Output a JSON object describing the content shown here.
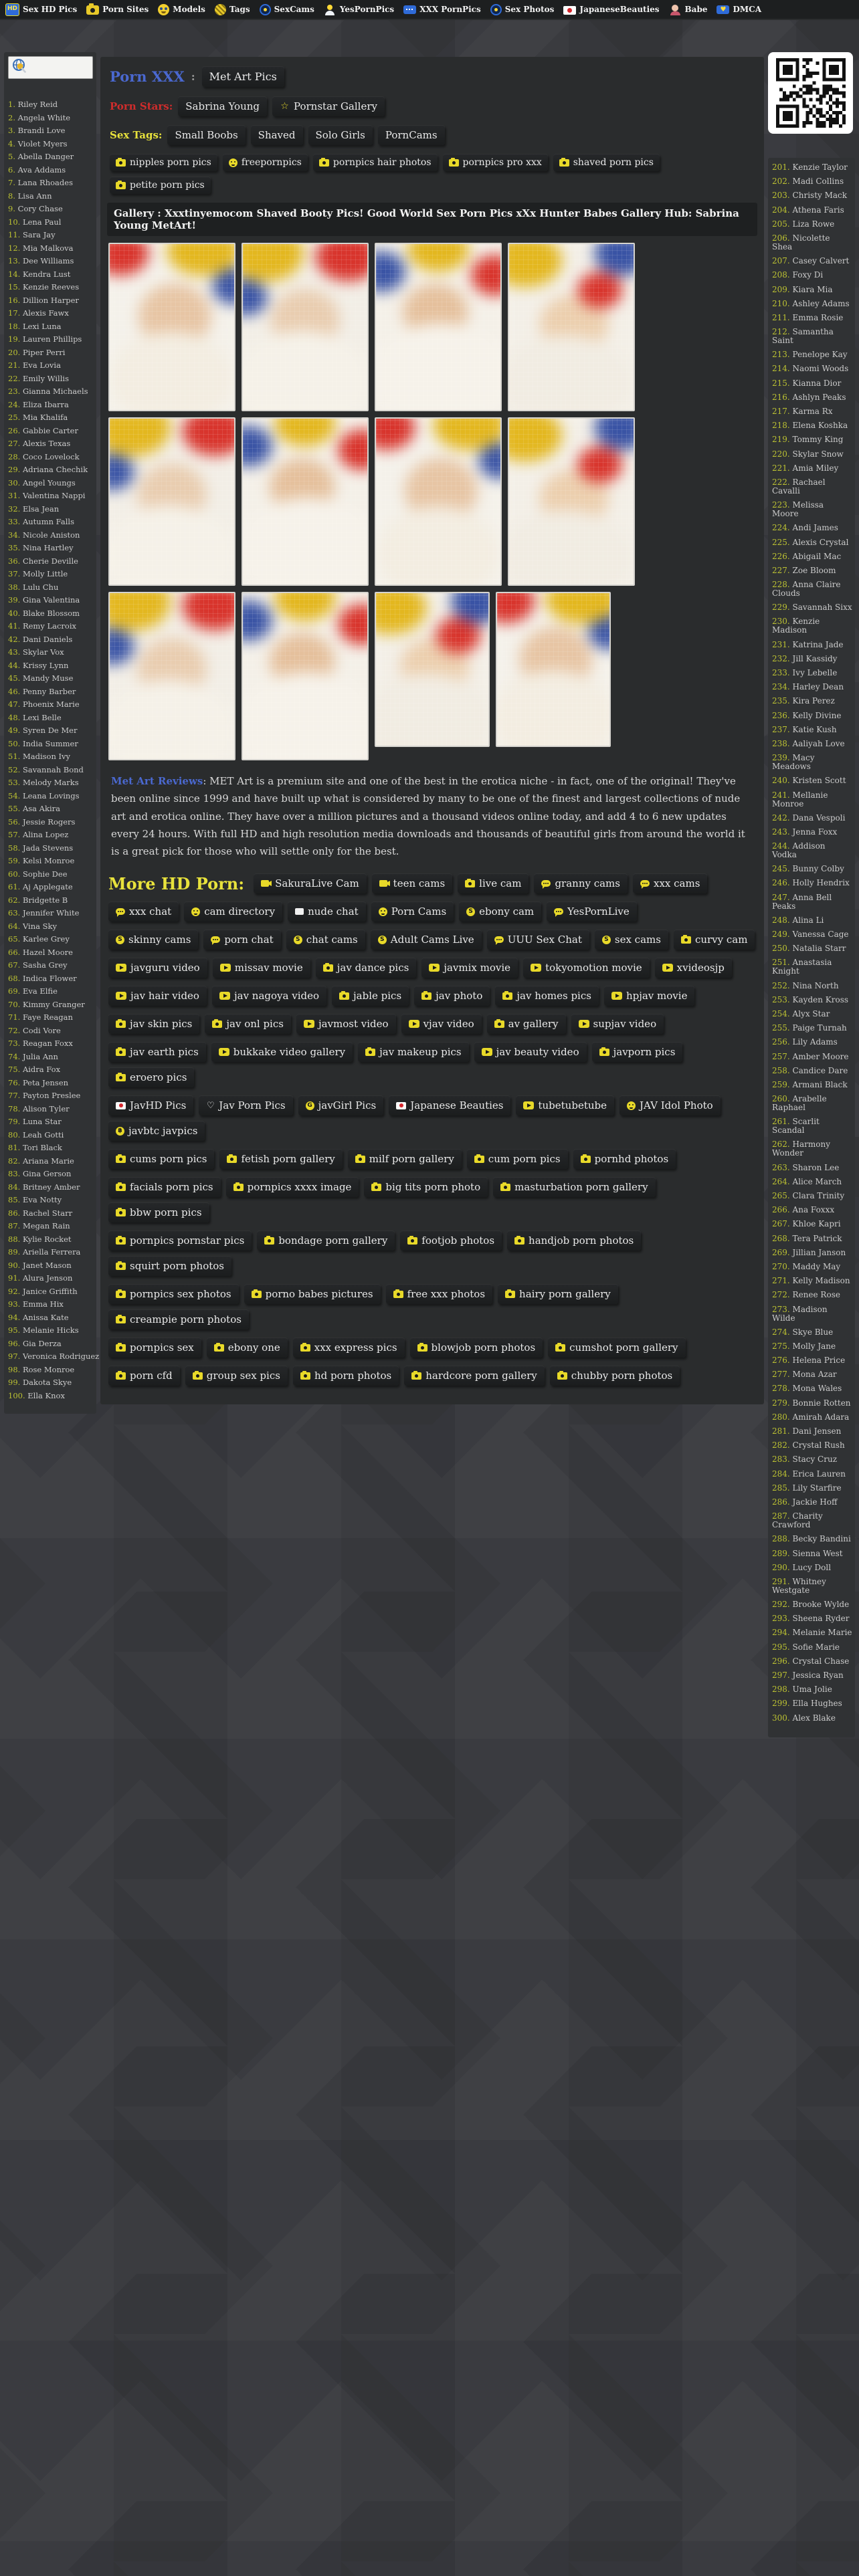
{
  "colors": {
    "accent_blue": "#4a68cf",
    "accent_red": "#cf2c2c",
    "accent_yellow": "#e8e23c",
    "icon_yellow": "#e8d929",
    "page_background": "#3a3b40",
    "panel_background": "#2a2c2d"
  },
  "topbar": {
    "links": [
      {
        "icon": "hd",
        "label": "Sex HD Pics"
      },
      {
        "icon": "camera",
        "label": "Porn Sites"
      },
      {
        "icon": "smiley",
        "label": "Models"
      },
      {
        "icon": "tag",
        "label": "Tags"
      },
      {
        "icon": "webcam",
        "label": "SexCams"
      },
      {
        "icon": "person",
        "label": "YesPornPics"
      },
      {
        "icon": "chat",
        "label": "XXX PornPics"
      },
      {
        "icon": "webcam",
        "label": "Sex Photos"
      },
      {
        "icon": "flagjp",
        "label": "JapaneseBeauties"
      },
      {
        "icon": "babe",
        "label": "Babe"
      },
      {
        "icon": "chatheart",
        "label": "DMCA"
      }
    ]
  },
  "left_sidebar": {
    "start_number": 1,
    "models": [
      "Riley Reid",
      "Angela White",
      "Brandi Love",
      "Violet Myers",
      "Abella Danger",
      "Ava Addams",
      "Lana Rhoades",
      "Lisa Ann",
      "Cory Chase",
      "Lena Paul",
      "Sara Jay",
      "Mia Malkova",
      "Dee Williams",
      "Kendra Lust",
      "Kenzie Reeves",
      "Dillion Harper",
      "Alexis Fawx",
      "Lexi Luna",
      "Lauren Phillips",
      "Piper Perri",
      "Eva Lovia",
      "Emily Willis",
      "Gianna Michaels",
      "Eliza Ibarra",
      "Mia Khalifa",
      "Gabbie Carter",
      "Alexis Texas",
      "Coco Lovelock",
      "Adriana Chechik",
      "Angel Youngs",
      "Valentina Nappi",
      "Elsa Jean",
      "Autumn Falls",
      "Nicole Aniston",
      "Nina Hartley",
      "Cherie Deville",
      "Molly Little",
      "Lulu Chu",
      "Gina Valentina",
      "Blake Blossom",
      "Remy Lacroix",
      "Dani Daniels",
      "Skylar Vox",
      "Krissy Lynn",
      "Mandy Muse",
      "Penny Barber",
      "Phoenix Marie",
      "Lexi Belle",
      "Syren De Mer",
      "India Summer",
      "Madison Ivy",
      "Savannah Bond",
      "Melody Marks",
      "Leana Lovings",
      "Asa Akira",
      "Jessie Rogers",
      "Alina Lopez",
      "Jada Stevens",
      "Kelsi Monroe",
      "Sophie Dee",
      "Aj Applegate",
      "Bridgette B",
      "Jennifer White",
      "Vina Sky",
      "Karlee Grey",
      "Hazel Moore",
      "Sasha Grey",
      "Indica Flower",
      "Eva Elfie",
      "Kimmy Granger",
      "Faye Reagan",
      "Codi Vore",
      "Reagan Foxx",
      "Julia Ann",
      "Aidra Fox",
      "Peta Jensen",
      "Payton Preslee",
      "Alison Tyler",
      "Luna Star",
      "Leah Gotti",
      "Tori Black",
      "Ariana Marie",
      "Gina Gerson",
      "Britney Amber",
      "Eva Notty",
      "Rachel Starr",
      "Megan Rain",
      "Kylie Rocket",
      "Ariella Ferrera",
      "Janet Mason",
      "Alura Jenson",
      "Janice Griffith",
      "Emma Hix",
      "Anissa Kate",
      "Melanie Hicks",
      "Gia Derza",
      "Veronica Rodriguez",
      "Rose Monroe",
      "Dakota Skye",
      "Ella Knox"
    ]
  },
  "right_sidebar": {
    "start_number": 201,
    "models": [
      "Kenzie Taylor",
      "Madi Collins",
      "Christy Mack",
      "Athena Faris",
      "Liza Rowe",
      "Nicolette Shea",
      "Casey Calvert",
      "Foxy Di",
      "Kiara Mia",
      "Ashley Adams",
      "Emma Rosie",
      "Samantha Saint",
      "Penelope Kay",
      "Naomi Woods",
      "Kianna Dior",
      "Ashlyn Peaks",
      "Karma Rx",
      "Elena Koshka",
      "Tommy King",
      "Skylar Snow",
      "Amia Miley",
      "Rachael Cavalli",
      "Melissa Moore",
      "Andi James",
      "Alexis Crystal",
      "Abigail Mac",
      "Zoe Bloom",
      "Anna Claire Clouds",
      "Savannah Sixx",
      "Kenzie Madison",
      "Katrina Jade",
      "Jill Kassidy",
      "Ivy Lebelle",
      "Harley Dean",
      "Kira Perez",
      "Kelly Divine",
      "Katie Kush",
      "Aaliyah Love",
      "Macy Meadows",
      "Kristen Scott",
      "Mellanie Monroe",
      "Dana Vespoli",
      "Jenna Foxx",
      "Addison Vodka",
      "Bunny Colby",
      "Holly Hendrix",
      "Anna Bell Peaks",
      "Alina Li",
      "Vanessa Cage",
      "Natalia Starr",
      "Anastasia Knight",
      "Nina North",
      "Kayden Kross",
      "Alyx Star",
      "Paige Turnah",
      "Lily Adams",
      "Amber Moore",
      "Candice Dare",
      "Armani Black",
      "Arabelle Raphael",
      "Scarlit Scandal",
      "Harmony Wonder",
      "Sharon Lee",
      "Alice March",
      "Clara Trinity",
      "Ana Foxxx",
      "Khloe Kapri",
      "Tera Patrick",
      "Jillian Janson",
      "Maddy May",
      "Kelly Madison",
      "Renee Rose",
      "Madison Wilde",
      "Skye Blue",
      "Molly Jane",
      "Helena Price",
      "Mona Azar",
      "Mona Wales",
      "Bonnie Rotten",
      "Amirah Adara",
      "Dani Jensen",
      "Crystal Rush",
      "Stacy Cruz",
      "Erica Lauren",
      "Lily Starfire",
      "Jackie Hoff",
      "Charity Crawford",
      "Becky Bandini",
      "Sienna West",
      "Lucy Doll",
      "Whitney Westgate",
      "Brooke Wylde",
      "Sheena Ryder",
      "Melanie Marie",
      "Sofie Marie",
      "Crystal Chase",
      "Jessica Ryan",
      "Uma Jolie",
      "Ella Hughes",
      "Alex Blake"
    ]
  },
  "breadcrumb": {
    "section": "Porn XXX",
    "separator": ":",
    "current": "Met Art Pics"
  },
  "pornstar_row": {
    "label": "Porn Stars:",
    "name": "Sabrina Young",
    "gallery_link": "Pornstar Gallery"
  },
  "sextag_row": {
    "label": "Sex Tags:",
    "tags": [
      "Small Boobs",
      "Shaved",
      "Solo Girls",
      "PornCams"
    ]
  },
  "quick_tags": [
    {
      "icon": "cam",
      "label": "nipples porn pics"
    },
    {
      "icon": "smile",
      "label": "freepornpics"
    },
    {
      "icon": "cam",
      "label": "pornpics hair photos"
    },
    {
      "icon": "cam",
      "label": "pornpics pro xxx"
    },
    {
      "icon": "cam",
      "label": "shaved porn pics"
    },
    {
      "icon": "cam",
      "label": "petite porn pics"
    }
  ],
  "gallery": {
    "title": "Gallery : Xxxtinyemocom Shaved Booty Pics! Good World Sex Porn Pics xXx Hunter Babes Gallery Hub: Sabrina Young MetArt!",
    "thumbnails": [
      {
        "size": "normal",
        "variant": 0
      },
      {
        "size": "normal",
        "variant": 1
      },
      {
        "size": "normal",
        "variant": 2
      },
      {
        "size": "normal",
        "variant": 3
      },
      {
        "size": "normal",
        "variant": 1
      },
      {
        "size": "normal",
        "variant": 2
      },
      {
        "size": "normal",
        "variant": 0
      },
      {
        "size": "normal",
        "variant": 3
      },
      {
        "size": "normal",
        "variant": 1
      },
      {
        "size": "normal",
        "variant": 2
      },
      {
        "size": "small",
        "variant": 3
      },
      {
        "size": "small",
        "variant": 0
      }
    ]
  },
  "review": {
    "label": "Met Art Reviews",
    "text": ": MET Art is a premium site and one of the best in the erotica niche - in fact, one of the original! They've been online since 1999 and have built up what is considered by many to be one of the finest and largest collections of nude art and erotica online. They have over a million pictures and a thousand videos online today, and add 4 to 6 new updates every 24 hours. With full HD and high resolution media downloads and thousands of beautiful girls from around the world it is a great pick for those who will settle only for the best."
  },
  "more_hd": {
    "heading": "More HD Porn:",
    "rows": [
      [
        {
          "icon": "vidcam",
          "label": "SakuraLive Cam"
        },
        {
          "icon": "vidcam",
          "label": "teen cams"
        },
        {
          "icon": "cam",
          "label": "live cam"
        },
        {
          "icon": "chat",
          "label": "granny cams"
        },
        {
          "icon": "chat",
          "label": "xxx cams"
        }
      ],
      [
        {
          "icon": "chat",
          "label": "xxx chat"
        },
        {
          "icon": "smile",
          "label": "cam directory"
        },
        {
          "icon": "chatsq",
          "label": "nude chat"
        },
        {
          "icon": "smile",
          "label": "Porn Cams"
        },
        {
          "icon": "coinS",
          "label": "ebony cam"
        },
        {
          "icon": "chat",
          "label": "YesPornLive"
        }
      ],
      [
        {
          "icon": "coinS",
          "label": "skinny cams"
        },
        {
          "icon": "chat",
          "label": "porn chat"
        },
        {
          "icon": "coinS",
          "label": "chat cams"
        },
        {
          "icon": "coinS",
          "label": "Adult Cams Live"
        },
        {
          "icon": "chat",
          "label": "UUU Sex Chat"
        },
        {
          "icon": "coinS",
          "label": "sex cams"
        },
        {
          "icon": "cam",
          "label": "curvy cam"
        }
      ],
      [
        {
          "icon": "play",
          "label": "javguru video"
        },
        {
          "icon": "play",
          "label": "missav movie"
        },
        {
          "icon": "cam",
          "label": "jav dance pics"
        },
        {
          "icon": "play",
          "label": "javmix movie"
        },
        {
          "icon": "play",
          "label": "tokyomotion movie"
        },
        {
          "icon": "play",
          "label": "xvideosjp"
        }
      ],
      [
        {
          "icon": "play",
          "label": "jav hair video"
        },
        {
          "icon": "play",
          "label": "jav nagoya video"
        },
        {
          "icon": "cam",
          "label": "jable pics"
        },
        {
          "icon": "cam",
          "label": "jav photo"
        },
        {
          "icon": "cam",
          "label": "jav homes pics"
        },
        {
          "icon": "play",
          "label": "hpjav movie"
        }
      ],
      [
        {
          "icon": "cam",
          "label": "jav skin pics"
        },
        {
          "icon": "cam",
          "label": "jav onl pics"
        },
        {
          "icon": "play",
          "label": "javmost video"
        },
        {
          "icon": "play",
          "label": "vjav video"
        },
        {
          "icon": "cam",
          "label": "av gallery"
        },
        {
          "icon": "play",
          "label": "supjav video"
        }
      ],
      [
        {
          "icon": "cam",
          "label": "jav earth pics"
        },
        {
          "icon": "play",
          "label": "bukkake video gallery"
        },
        {
          "icon": "cam",
          "label": "jav makeup pics"
        },
        {
          "icon": "play",
          "label": "jav beauty video"
        },
        {
          "icon": "cam",
          "label": "javporn pics"
        },
        {
          "icon": "cam",
          "label": "eroero pics"
        }
      ],
      [
        {
          "icon": "flag",
          "label": "JavHD Pics"
        },
        {
          "icon": "heart",
          "label": "Jav Porn Pics"
        },
        {
          "icon": "coinG",
          "label": "javGirl Pics"
        },
        {
          "icon": "flag",
          "label": "Japanese Beauties"
        },
        {
          "icon": "play",
          "label": "tubetubetube"
        },
        {
          "icon": "smile",
          "label": "JAV Idol Photo"
        },
        {
          "icon": "coinB",
          "label": "javbtc javpics"
        }
      ],
      [
        {
          "icon": "cam",
          "label": "cums porn pics"
        },
        {
          "icon": "cam",
          "label": "fetish porn gallery"
        },
        {
          "icon": "cam",
          "label": "milf porn gallery"
        },
        {
          "icon": "cam",
          "label": "cum porn pics"
        },
        {
          "icon": "cam",
          "label": "pornhd photos"
        }
      ],
      [
        {
          "icon": "cam",
          "label": "facials porn pics"
        },
        {
          "icon": "cam",
          "label": "pornpics xxxx image"
        },
        {
          "icon": "cam",
          "label": "big tits porn photo"
        },
        {
          "icon": "cam",
          "label": "masturbation porn gallery"
        },
        {
          "icon": "cam",
          "label": "bbw porn pics"
        }
      ],
      [
        {
          "icon": "cam",
          "label": "pornpics pornstar pics"
        },
        {
          "icon": "cam",
          "label": "bondage porn gallery"
        },
        {
          "icon": "cam",
          "label": "footjob photos"
        },
        {
          "icon": "cam",
          "label": "handjob porn photos"
        },
        {
          "icon": "cam",
          "label": "squirt porn photos"
        }
      ],
      [
        {
          "icon": "cam",
          "label": "pornpics sex photos"
        },
        {
          "icon": "cam",
          "label": "porno babes pictures"
        },
        {
          "icon": "cam",
          "label": "free xxx photos"
        },
        {
          "icon": "cam",
          "label": "hairy porn gallery"
        },
        {
          "icon": "cam",
          "label": "creampie porn photos"
        }
      ],
      [
        {
          "icon": "cam",
          "label": "pornpics sex"
        },
        {
          "icon": "cam",
          "label": "ebony one"
        },
        {
          "icon": "cam",
          "label": "xxx express pics"
        },
        {
          "icon": "cam",
          "label": "blowjob porn photos"
        },
        {
          "icon": "cam",
          "label": "cumshot porn gallery"
        }
      ],
      [
        {
          "icon": "cam",
          "label": "porn cfd"
        },
        {
          "icon": "cam",
          "label": "group sex pics"
        },
        {
          "icon": "cam",
          "label": "hd porn photos"
        },
        {
          "icon": "cam",
          "label": "hardcore porn gallery"
        },
        {
          "icon": "cam",
          "label": "chubby porn photos"
        }
      ]
    ]
  }
}
